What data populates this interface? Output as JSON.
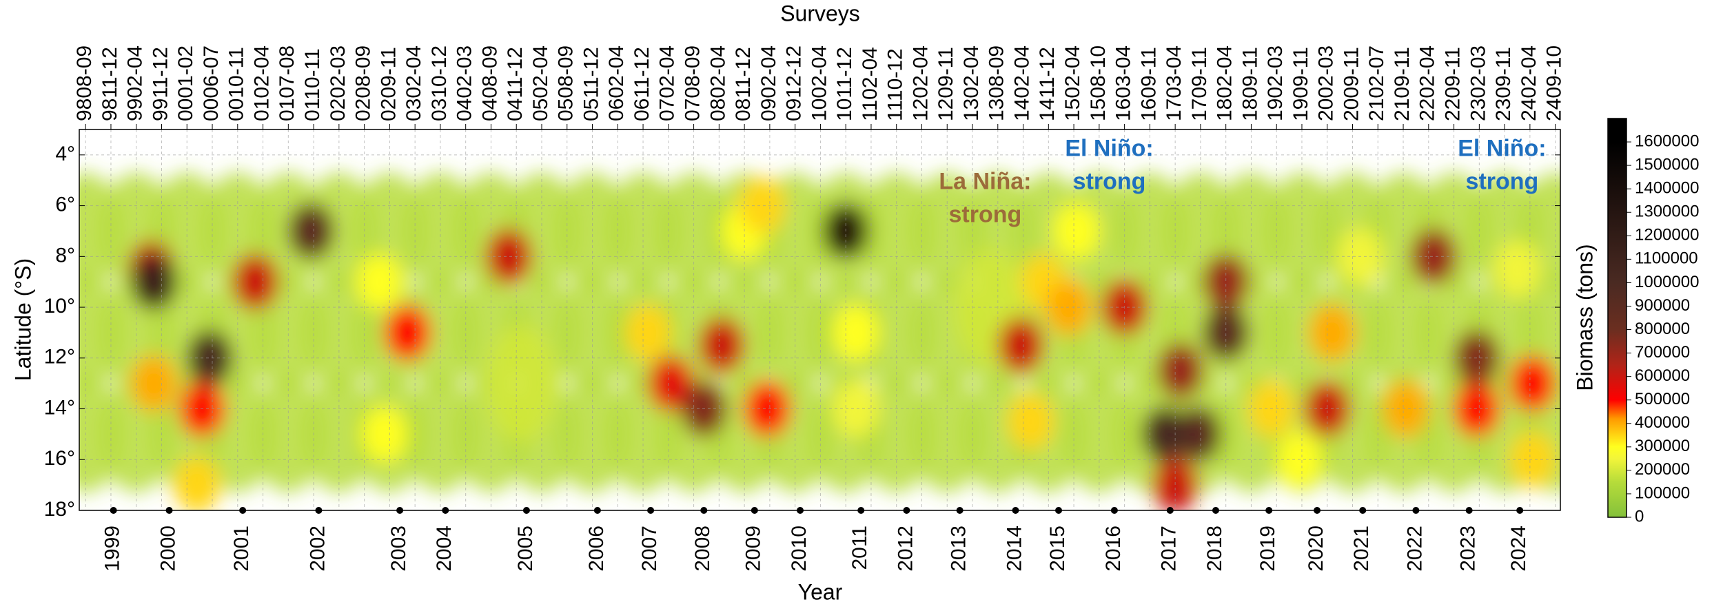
{
  "chart_data": {
    "type": "heatmap",
    "x_title": "Surveys",
    "xlabel": "Year",
    "ylabel": "Latitude (°S)",
    "colorbar_label": "Biomass (tons)",
    "categories": [
      "9808-09",
      "9811-12",
      "9902-04",
      "9911-12",
      "0001-02",
      "0006-07",
      "0010-11",
      "0102-04",
      "0107-08",
      "0110-11",
      "0202-03",
      "0208-09",
      "0209-11",
      "0302-04",
      "0310-12",
      "0402-03",
      "0408-09",
      "0411-12",
      "0502-04",
      "0508-09",
      "0511-12",
      "0602-04",
      "0611-12",
      "0702-04",
      "0708-09",
      "0802-04",
      "0811-12",
      "0902-04",
      "0912-12",
      "1002-04",
      "1011-12",
      "1102-04",
      "1110-12",
      "1202-04",
      "1209-11",
      "1302-04",
      "1308-09",
      "1402-04",
      "1411-12",
      "1502-04",
      "1508-10",
      "1603-04",
      "1609-11",
      "1703-04",
      "1709-11",
      "1802-04",
      "1809-11",
      "1902-03",
      "1909-11",
      "2002-03",
      "2009-11",
      "2102-07",
      "2109-11",
      "2202-04",
      "2209-11",
      "2302-03",
      "2309-11",
      "2402-04",
      "2409-10"
    ],
    "xlim": [
      -0.25,
      58.2
    ],
    "xticks": [
      {
        "value": 1.1,
        "label": "1999"
      },
      {
        "value": 3.3,
        "label": "2000"
      },
      {
        "value": 6.2,
        "label": "2001"
      },
      {
        "value": 9.2,
        "label": "2002"
      },
      {
        "value": 12.4,
        "label": "2003"
      },
      {
        "value": 14.2,
        "label": "2004"
      },
      {
        "value": 17.4,
        "label": "2005"
      },
      {
        "value": 20.2,
        "label": "2006"
      },
      {
        "value": 22.3,
        "label": "2007"
      },
      {
        "value": 24.4,
        "label": "2008"
      },
      {
        "value": 26.4,
        "label": "2009"
      },
      {
        "value": 28.2,
        "label": "2010"
      },
      {
        "value": 30.6,
        "label": "2011"
      },
      {
        "value": 32.4,
        "label": "2012"
      },
      {
        "value": 34.5,
        "label": "2013"
      },
      {
        "value": 36.7,
        "label": "2014"
      },
      {
        "value": 38.4,
        "label": "2015"
      },
      {
        "value": 40.6,
        "label": "2016"
      },
      {
        "value": 42.8,
        "label": "2017"
      },
      {
        "value": 44.6,
        "label": "2018"
      },
      {
        "value": 46.7,
        "label": "2019"
      },
      {
        "value": 48.6,
        "label": "2020"
      },
      {
        "value": 50.4,
        "label": "2021"
      },
      {
        "value": 52.5,
        "label": "2022"
      },
      {
        "value": 54.6,
        "label": "2023"
      },
      {
        "value": 56.6,
        "label": "2024"
      }
    ],
    "ylim": [
      3,
      18
    ],
    "y_inverted": true,
    "yticks": [
      {
        "value": 4,
        "label": "4°"
      },
      {
        "value": 6,
        "label": "6°"
      },
      {
        "value": 8,
        "label": "8°"
      },
      {
        "value": 10,
        "label": "10°"
      },
      {
        "value": 12,
        "label": "12°"
      },
      {
        "value": 14,
        "label": "14°"
      },
      {
        "value": 16,
        "label": "16°"
      },
      {
        "value": 18,
        "label": "18°"
      }
    ],
    "grid": true,
    "clim": [
      0,
      1700000
    ],
    "cticks": [
      0,
      100000,
      200000,
      300000,
      400000,
      500000,
      600000,
      700000,
      800000,
      900000,
      1000000,
      1100000,
      1200000,
      1300000,
      1400000,
      1500000,
      1600000
    ],
    "colormap": [
      {
        "value": 0,
        "color": "#84c13b"
      },
      {
        "value": 150000,
        "color": "#b6dc3a"
      },
      {
        "value": 250000,
        "color": "#f2f53a"
      },
      {
        "value": 300000,
        "color": "#ffff20"
      },
      {
        "value": 420000,
        "color": "#ff9a00"
      },
      {
        "value": 500000,
        "color": "#ff0000"
      },
      {
        "value": 650000,
        "color": "#b02418"
      },
      {
        "value": 800000,
        "color": "#6b2e20"
      },
      {
        "value": 1000000,
        "color": "#4a2a22"
      },
      {
        "value": 1600000,
        "color": "#000000"
      }
    ],
    "x": [
      0,
      0,
      0,
      2,
      2,
      2,
      4,
      4,
      4,
      6,
      6,
      6,
      8,
      8,
      8,
      10,
      10,
      10,
      12,
      12,
      12,
      14,
      14,
      14,
      16,
      16,
      16,
      18,
      18,
      18,
      20,
      20,
      20,
      22,
      22,
      22,
      24,
      24,
      24,
      26,
      26,
      26,
      28,
      28,
      28,
      30,
      30,
      30,
      32,
      32,
      32,
      34,
      34,
      34,
      36,
      36,
      36,
      38,
      38,
      38,
      40,
      40,
      40,
      42,
      42,
      42,
      44,
      44,
      44,
      46,
      46,
      46,
      48,
      48,
      48,
      50,
      50,
      50,
      52,
      52,
      52,
      54,
      54,
      54,
      56,
      56,
      56,
      58,
      58,
      58,
      35.7,
      17.2,
      30.4,
      56.5,
      50.3,
      11.8,
      11.6,
      26.0,
      30.4,
      39.1,
      47.9,
      4.4,
      22.2,
      26.7,
      37.8,
      37.3,
      46.8,
      57.1,
      2.7,
      38.8,
      49.2,
      52.1,
      4.6,
      12.7,
      26.9,
      54.9,
      57.1,
      23.1,
      2.6,
      6.7,
      16.7,
      25.1,
      36.9,
      41.0,
      43.0,
      49.0,
      43.2,
      45.0,
      53.2,
      24.4,
      54.9,
      8.9,
      43.9,
      45.0,
      4.9,
      42.6,
      2.7,
      30.0
    ],
    "y": [
      7,
      11,
      15,
      7,
      11,
      15,
      7,
      11,
      15,
      7,
      11,
      15,
      7,
      11,
      15,
      7,
      11,
      15,
      7,
      11,
      15,
      7,
      11,
      15,
      7,
      11,
      15,
      7,
      11,
      15,
      7,
      11,
      15,
      7,
      11,
      15,
      7,
      11,
      15,
      7,
      11,
      15,
      7,
      11,
      15,
      7,
      11,
      15,
      7,
      11,
      15,
      7,
      11,
      15,
      7,
      11,
      15,
      7,
      11,
      15,
      7,
      11,
      15,
      7,
      11,
      15,
      7,
      11,
      15,
      7,
      11,
      15,
      7,
      11,
      15,
      7,
      11,
      15,
      7,
      11,
      15,
      7,
      11,
      15,
      7,
      11,
      15,
      7,
      11,
      15,
      10,
      13,
      14,
      8.5,
      8,
      15,
      9,
      7,
      11,
      7,
      16,
      17,
      11,
      6,
      9,
      14.5,
      14,
      16,
      13,
      10,
      11,
      14,
      14,
      11,
      14,
      14,
      13,
      13,
      8.5,
      9,
      8,
      11.5,
      11.5,
      10,
      17,
      14,
      12.5,
      9,
      8,
      14,
      12,
      7,
      15,
      11,
      12,
      15,
      9,
      7
    ],
    "values": [
      150000,
      150000,
      150000,
      150000,
      150000,
      150000,
      150000,
      150000,
      150000,
      150000,
      150000,
      150000,
      150000,
      150000,
      150000,
      150000,
      150000,
      150000,
      150000,
      150000,
      150000,
      150000,
      150000,
      150000,
      150000,
      150000,
      150000,
      150000,
      150000,
      150000,
      150000,
      150000,
      150000,
      150000,
      150000,
      150000,
      150000,
      150000,
      150000,
      150000,
      150000,
      150000,
      150000,
      150000,
      150000,
      150000,
      150000,
      150000,
      150000,
      150000,
      150000,
      150000,
      150000,
      150000,
      150000,
      150000,
      150000,
      150000,
      150000,
      150000,
      150000,
      150000,
      150000,
      150000,
      150000,
      150000,
      150000,
      150000,
      150000,
      150000,
      150000,
      150000,
      150000,
      150000,
      150000,
      150000,
      150000,
      150000,
      150000,
      150000,
      150000,
      150000,
      150000,
      150000,
      150000,
      150000,
      150000,
      150000,
      150000,
      150000,
      200000,
      200000,
      250000,
      250000,
      250000,
      300000,
      300000,
      300000,
      300000,
      300000,
      300000,
      350000,
      350000,
      350000,
      350000,
      350000,
      350000,
      350000,
      400000,
      400000,
      400000,
      400000,
      500000,
      500000,
      500000,
      500000,
      500000,
      550000,
      600000,
      600000,
      600000,
      600000,
      600000,
      600000,
      600000,
      600000,
      700000,
      700000,
      700000,
      750000,
      750000,
      900000,
      900000,
      900000,
      1000000,
      1000000,
      1100000,
      1300000
    ],
    "annotations": [
      {
        "lines": [
          "La Niña:",
          "strong"
        ],
        "x": 35.5,
        "y": 5.1,
        "color": "#9c6b3a"
      },
      {
        "lines": [
          "El Niño:",
          "strong"
        ],
        "x": 40.4,
        "y": 3.8,
        "color": "#1f6fbf"
      },
      {
        "lines": [
          "El Niño:",
          "strong"
        ],
        "x": 55.9,
        "y": 3.8,
        "color": "#1f6fbf"
      }
    ]
  }
}
